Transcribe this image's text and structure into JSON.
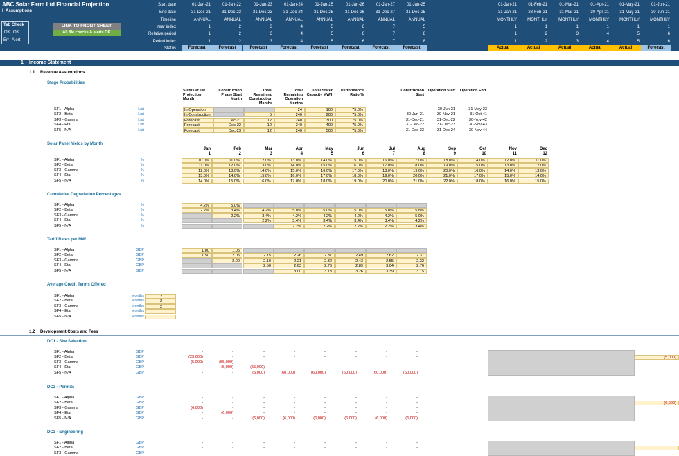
{
  "header": {
    "title": "ABC Solar Farm Ltd Financial Projection",
    "sheet": "I_Assumptions",
    "tabcheck": {
      "title": "Tab Check",
      "ok1": "OK",
      "ok2": "OK",
      "err": "Err",
      "alert": "Alert"
    },
    "link_button": "LINK TO FRONT SHEET",
    "status_button": "All file checks & alerts OK",
    "row_labels": [
      "Start date",
      "End date",
      "Timeline",
      "Year index",
      "Relative period",
      "Period index",
      "Status"
    ],
    "annual": {
      "start": [
        "01-Jan-21",
        "01-Jan-22",
        "01-Jan-23",
        "01-Jan-24",
        "01-Jan-25",
        "01-Jan-26",
        "01-Jan-27",
        "01-Jan-25"
      ],
      "end": [
        "31-Dec-21",
        "31-Dec-22",
        "31-Dec-23",
        "31-Dec-24",
        "31-Dec-25",
        "31-Dec-26",
        "31-Dec-27",
        "31-Dec-25"
      ],
      "timeline": [
        "ANNUAL",
        "ANNUAL",
        "ANNUAL",
        "ANNUAL",
        "ANNUAL",
        "ANNUAL",
        "ANNUAL",
        "ANNUAL"
      ],
      "year": [
        "1",
        "2",
        "3",
        "4",
        "5",
        "6",
        "7",
        "5"
      ],
      "rel": [
        "1",
        "2",
        "3",
        "4",
        "5",
        "6",
        "7",
        "8"
      ],
      "period": [
        "1",
        "2",
        "3",
        "4",
        "5",
        "6",
        "7",
        "8"
      ],
      "status": [
        "Forecast",
        "Forecast",
        "Forecast",
        "Forecast",
        "Forecast",
        "Forecast",
        "Forecast",
        "Forecast"
      ]
    },
    "monthly": {
      "start": [
        "01-Jan-21",
        "01-Feb-21",
        "01-Mar-21",
        "01-Apr-21",
        "01-May-21",
        "01-Jun-21"
      ],
      "end": [
        "31-Jan-21",
        "28-Feb-21",
        "31-Mar-21",
        "30-Apr-21",
        "31-May-21",
        "30-Jun-21"
      ],
      "timeline": [
        "MONTHLY",
        "MONTHLY",
        "MONTHLY",
        "MONTHLY",
        "MONTHLY",
        "MONTHLY"
      ],
      "year": [
        "1",
        "1",
        "1",
        "1",
        "1",
        "1"
      ],
      "rel": [
        "1",
        "2",
        "3",
        "4",
        "5",
        "6"
      ],
      "period": [
        "1",
        "2",
        "3",
        "4",
        "5",
        "6"
      ],
      "status": [
        "Actual",
        "Actual",
        "Actual",
        "Actual",
        "Actual",
        "Forecast"
      ]
    },
    "colors": {
      "navy": "#1f4e79",
      "forecast": "#9dc3e6",
      "actual": "#ffc000",
      "ok": "#70ad47",
      "button": "#808080"
    }
  },
  "sections": {
    "s1": {
      "num": "1",
      "title": "Income Statement"
    },
    "s11": {
      "num": "1.1",
      "title": "Revenue Assumptions"
    },
    "s12": {
      "num": "1.2",
      "title": "Development Costs and Fees"
    }
  },
  "farms": [
    "SF1 - Alpha",
    "SF2 - Beta",
    "SF3 - Gamma",
    "SF4 - Eta",
    "SF5 - N/A"
  ],
  "stage": {
    "title": "Stage Probabilities",
    "headers": [
      "Status at 1st Projection Month",
      "Construction Phase Start Month",
      "Total/ Remaining Construction Months",
      "Total/ Remaining Operation Months",
      "Total Stated Capacity MW/h",
      "Performance Ratio %",
      "Construction Start",
      "Operation Start",
      "Operation End"
    ],
    "unit": "List",
    "rows": [
      [
        "In Operation",
        "",
        "",
        "24",
        "100",
        "75.0%",
        "",
        "30-Jun-21",
        "31-May-23"
      ],
      [
        "In Construction",
        "",
        "5",
        "240",
        "200",
        "75.0%",
        "30-Jun-21",
        "30-Nov-21",
        "31-Oct-41"
      ],
      [
        "Forecast",
        "Dec-21",
        "12",
        "240",
        "300",
        "75.0%",
        "31-Dec-21",
        "31-Dec-22",
        "30-Nov-42"
      ],
      [
        "Forecast",
        "Dec-22",
        "12",
        "240",
        "400",
        "75.0%",
        "31-Dec-22",
        "31-Dec-23",
        "30-Nov-43"
      ],
      [
        "Forecast",
        "Dec-23",
        "12",
        "240",
        "500",
        "75.0%",
        "31-Dec-23",
        "31-Dec-24",
        "30-Nov-44"
      ]
    ]
  },
  "yields": {
    "title": "Solar Panel Yields by Month",
    "unit": "%",
    "months": [
      "Jan",
      "Feb",
      "Mar",
      "Apr",
      "May",
      "Jun",
      "Jul",
      "Aug",
      "Sep",
      "Oct",
      "Nov",
      "Dec"
    ],
    "idx": [
      "1",
      "2",
      "3",
      "4",
      "5",
      "6",
      "7",
      "8",
      "9",
      "10",
      "11",
      "12"
    ],
    "rows": [
      [
        "10.0%",
        "11.0%",
        "12.0%",
        "13.0%",
        "14.0%",
        "15.0%",
        "16.0%",
        "17.0%",
        "18.0%",
        "14.0%",
        "12.0%",
        "11.0%"
      ],
      [
        "11.0%",
        "12.0%",
        "13.0%",
        "14.0%",
        "15.0%",
        "16.0%",
        "17.0%",
        "18.0%",
        "19.0%",
        "15.0%",
        "13.0%",
        "12.0%"
      ],
      [
        "12.0%",
        "13.0%",
        "14.0%",
        "15.0%",
        "16.0%",
        "17.0%",
        "18.0%",
        "19.0%",
        "20.0%",
        "16.0%",
        "14.0%",
        "13.0%"
      ],
      [
        "13.0%",
        "14.0%",
        "15.0%",
        "16.0%",
        "17.0%",
        "18.0%",
        "19.0%",
        "20.0%",
        "21.0%",
        "17.0%",
        "15.0%",
        "14.0%"
      ],
      [
        "14.0%",
        "15.0%",
        "16.0%",
        "17.0%",
        "18.0%",
        "19.0%",
        "20.0%",
        "21.0%",
        "22.0%",
        "18.0%",
        "16.0%",
        "15.0%"
      ]
    ]
  },
  "degradation": {
    "title": "Cumulative Degradation Percentages",
    "unit": "%",
    "rows": [
      [
        "4.2%",
        "5.0%",
        "",
        "",
        "",
        "",
        "",
        ""
      ],
      [
        "2.2%",
        "3.4%",
        "4.2%",
        "5.0%",
        "5.0%",
        "5.0%",
        "5.0%",
        "5.8%"
      ],
      [
        "",
        "2.2%",
        "3.4%",
        "4.2%",
        "4.2%",
        "4.2%",
        "4.2%",
        "5.0%"
      ],
      [
        "",
        "",
        "2.2%",
        "3.4%",
        "3.4%",
        "3.4%",
        "3.4%",
        "4.2%"
      ],
      [
        "",
        "",
        "",
        "2.2%",
        "2.2%",
        "2.2%",
        "2.2%",
        "3.4%"
      ]
    ]
  },
  "tariff": {
    "title": "Tariff Rates per MW",
    "unit": "GBP",
    "rows": [
      [
        "1.00",
        "1.05",
        "",
        "",
        "",
        "",
        "",
        ""
      ],
      [
        "1.50",
        "2.05",
        "2.15",
        "2.26",
        "2.37",
        "2.49",
        "2.62",
        "2.37"
      ],
      [
        "",
        "2.00",
        "2.10",
        "2.21",
        "2.32",
        "2.43",
        "2.55",
        "2.32"
      ],
      [
        "",
        "",
        "2.50",
        "2.63",
        "2.76",
        "2.89",
        "3.04",
        "2.76"
      ],
      [
        "",
        "",
        "",
        "3.00",
        "3.13",
        "3.26",
        "3.39",
        "3.15"
      ]
    ]
  },
  "credit": {
    "title": "Average Credit Terms Offered",
    "unit": "Months",
    "values": [
      "2",
      "2",
      "2",
      "",
      ""
    ]
  },
  "dc1": {
    "title": "DC1 - Site Selection",
    "unit": "GBP",
    "rows": [
      [
        "-",
        "-",
        "-",
        "-",
        "-",
        "-",
        "-",
        "-"
      ],
      [
        "(25,000)",
        "-",
        "-",
        "-",
        "-",
        "-",
        "-",
        "-"
      ],
      [
        "(5,000)",
        "(55,000)",
        "-",
        "-",
        "-",
        "-",
        "-",
        "-"
      ],
      [
        "-",
        "(5,000)",
        "(55,000)",
        "-",
        "-",
        "-",
        "-",
        "-"
      ],
      [
        "-",
        "-",
        "(5,000)",
        "(60,000)",
        "(60,000)",
        "(60,000)",
        "(60,000)",
        "(60,000)"
      ]
    ],
    "monthly_val": "(5,000)"
  },
  "dc2": {
    "title": "DC2 - Permits",
    "unit": "GBP",
    "rows": [
      [
        "-",
        "-",
        "-",
        "-",
        "-",
        "-",
        "-",
        "-"
      ],
      [
        "-",
        "-",
        "-",
        "-",
        "-",
        "-",
        "-",
        "-"
      ],
      [
        "(6,000)",
        "-",
        "-",
        "-",
        "-",
        "-",
        "-",
        "-"
      ],
      [
        "-",
        "(6,000)",
        "-",
        "-",
        "-",
        "-",
        "-",
        "-"
      ],
      [
        "-",
        "-",
        "(6,000)",
        "(6,000)",
        "(6,000)",
        "(6,000)",
        "(6,000)",
        "(6,000)"
      ]
    ],
    "monthly_val": "(6,000)"
  },
  "dc3": {
    "title": "DC3 - Engineering",
    "unit": "GBP",
    "rows": [
      [
        "-",
        "-",
        "-",
        "-",
        "-",
        "-",
        "-",
        "-"
      ],
      [
        "-",
        "-",
        "-",
        "-",
        "-",
        "-",
        "-",
        "-"
      ],
      [
        "-",
        "-",
        "-",
        "-",
        "-",
        "-",
        "-",
        "-"
      ]
    ]
  }
}
